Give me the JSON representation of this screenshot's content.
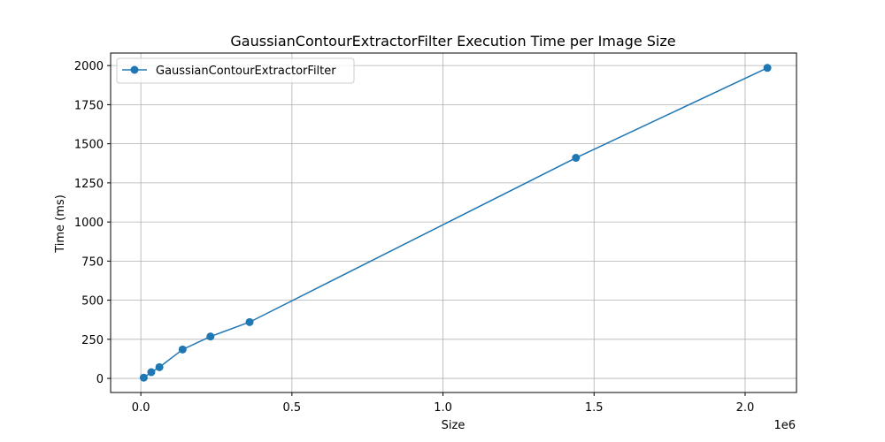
{
  "chart_data": {
    "type": "line",
    "title": "GaussianContourExtractorFilter Execution Time per Image Size",
    "xlabel": "Size",
    "ylabel": "Time (ms)",
    "x_offset_label": "1e6",
    "xlim": [
      -0.1,
      2.17
    ],
    "ylim": [
      -90,
      2080
    ],
    "x_ticks": [
      0.0,
      0.5,
      1.0,
      1.5,
      2.0
    ],
    "x_tick_labels": [
      "0.0",
      "0.5",
      "1.0",
      "1.5",
      "2.0"
    ],
    "y_ticks": [
      0,
      250,
      500,
      750,
      1000,
      1250,
      1500,
      1750,
      2000
    ],
    "y_tick_labels": [
      "0",
      "250",
      "500",
      "750",
      "1000",
      "1250",
      "1500",
      "1750",
      "2000"
    ],
    "grid": true,
    "legend": "top-left",
    "series": [
      {
        "name": "GaussianContourExtractorFilter",
        "color": "#1f77b4",
        "marker": "circle",
        "x": [
          0.0096,
          0.0346,
          0.0615,
          0.1382,
          0.2304,
          0.36,
          1.44,
          2.0736
        ],
        "y": [
          5,
          40,
          72,
          185,
          268,
          360,
          1410,
          1985
        ]
      }
    ]
  }
}
